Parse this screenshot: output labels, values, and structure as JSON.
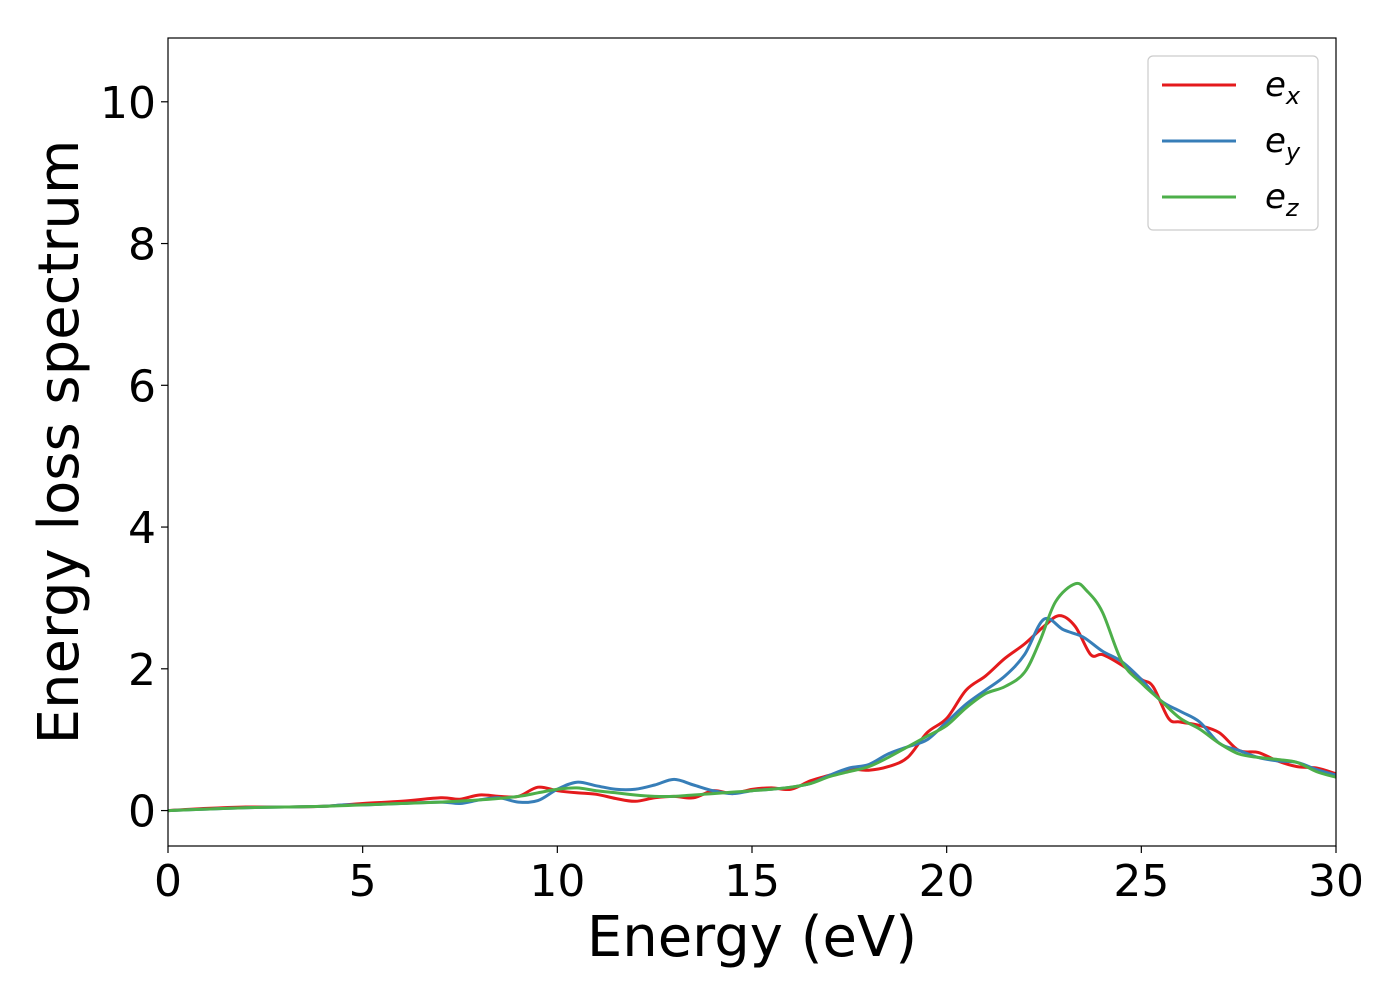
{
  "chart_data": {
    "type": "line",
    "title": "",
    "xlabel": "Energy (eV)",
    "ylabel": "Energy loss spectrum",
    "xlim": [
      0,
      30
    ],
    "ylim": [
      -0.5,
      10.9
    ],
    "xticks": [
      0,
      5,
      10,
      15,
      20,
      25,
      30
    ],
    "xtick_labels": [
      "0",
      "5",
      "10",
      "15",
      "20",
      "25",
      "30"
    ],
    "yticks": [
      0,
      2,
      4,
      6,
      8,
      10
    ],
    "ytick_labels": [
      "0",
      "2",
      "4",
      "6",
      "8",
      "10"
    ],
    "grid": false,
    "legend_position": "top-right",
    "series": [
      {
        "name": "e",
        "subscript": "x",
        "color": "#e41a1c",
        "x": [
          0,
          1,
          2,
          3,
          4,
          5,
          6,
          7,
          7.5,
          8,
          8.5,
          9,
          9.5,
          10,
          10.5,
          11,
          11.5,
          12,
          12.5,
          13,
          13.5,
          14,
          14.5,
          15,
          15.5,
          16,
          16.5,
          17,
          17.5,
          18,
          18.5,
          19,
          19.5,
          20,
          20.5,
          21,
          21.5,
          22,
          22.5,
          22.9,
          23.3,
          23.7,
          24,
          24.5,
          25,
          25.3,
          25.7,
          26,
          26.5,
          27,
          27.5,
          28,
          28.5,
          29,
          29.5,
          30
        ],
        "y": [
          0,
          0.03,
          0.05,
          0.05,
          0.06,
          0.1,
          0.13,
          0.18,
          0.16,
          0.22,
          0.2,
          0.2,
          0.33,
          0.28,
          0.25,
          0.23,
          0.17,
          0.13,
          0.18,
          0.2,
          0.18,
          0.28,
          0.24,
          0.3,
          0.32,
          0.3,
          0.42,
          0.5,
          0.58,
          0.57,
          0.62,
          0.75,
          1.1,
          1.3,
          1.7,
          1.9,
          2.15,
          2.35,
          2.6,
          2.75,
          2.6,
          2.2,
          2.2,
          2.05,
          1.85,
          1.75,
          1.3,
          1.25,
          1.2,
          1.1,
          0.85,
          0.82,
          0.7,
          0.62,
          0.6,
          0.52
        ]
      },
      {
        "name": "e",
        "subscript": "y",
        "color": "#377eb8",
        "x": [
          0,
          1,
          2,
          3,
          4,
          4.5,
          5,
          6,
          7,
          7.5,
          8,
          8.5,
          9,
          9.5,
          10,
          10.5,
          11,
          11.5,
          12,
          12.5,
          13,
          13.5,
          14,
          14.5,
          15,
          15.5,
          16,
          16.5,
          17,
          17.5,
          18,
          18.5,
          19,
          19.5,
          20,
          20.5,
          21,
          21.5,
          22,
          22.5,
          23,
          23.5,
          24,
          24.5,
          25,
          25.5,
          26,
          26.5,
          27,
          27.5,
          28,
          28.5,
          29,
          29.5,
          30
        ],
        "y": [
          0,
          0.02,
          0.04,
          0.05,
          0.06,
          0.08,
          0.08,
          0.1,
          0.12,
          0.1,
          0.15,
          0.18,
          0.12,
          0.14,
          0.3,
          0.4,
          0.35,
          0.3,
          0.3,
          0.36,
          0.44,
          0.36,
          0.28,
          0.24,
          0.28,
          0.3,
          0.33,
          0.38,
          0.5,
          0.6,
          0.65,
          0.8,
          0.9,
          1.0,
          1.25,
          1.5,
          1.7,
          1.9,
          2.2,
          2.7,
          2.55,
          2.45,
          2.25,
          2.1,
          1.85,
          1.55,
          1.4,
          1.25,
          0.95,
          0.85,
          0.75,
          0.7,
          0.68,
          0.58,
          0.5
        ]
      },
      {
        "name": "e",
        "subscript": "z",
        "color": "#4daf4a",
        "x": [
          0,
          1,
          2,
          3,
          4,
          5,
          6,
          7,
          8,
          9,
          9.5,
          10,
          10.5,
          11,
          11.5,
          12,
          12.5,
          13,
          13.5,
          14,
          14.5,
          15,
          15.5,
          16,
          16.5,
          17,
          17.5,
          18,
          18.5,
          19,
          19.5,
          20,
          20.5,
          21,
          21.5,
          22,
          22.4,
          22.8,
          23.3,
          23.6,
          24,
          24.5,
          25,
          25.5,
          26,
          26.5,
          27,
          27.5,
          28,
          28.5,
          29,
          29.5,
          30
        ],
        "y": [
          0,
          0.02,
          0.04,
          0.05,
          0.06,
          0.08,
          0.1,
          0.12,
          0.15,
          0.2,
          0.25,
          0.3,
          0.32,
          0.28,
          0.25,
          0.22,
          0.2,
          0.2,
          0.22,
          0.24,
          0.26,
          0.28,
          0.3,
          0.33,
          0.38,
          0.48,
          0.55,
          0.62,
          0.75,
          0.9,
          1.05,
          1.2,
          1.45,
          1.65,
          1.75,
          1.95,
          2.4,
          2.95,
          3.2,
          3.1,
          2.8,
          2.1,
          1.8,
          1.55,
          1.3,
          1.15,
          0.95,
          0.8,
          0.75,
          0.72,
          0.68,
          0.55,
          0.47
        ]
      }
    ]
  }
}
